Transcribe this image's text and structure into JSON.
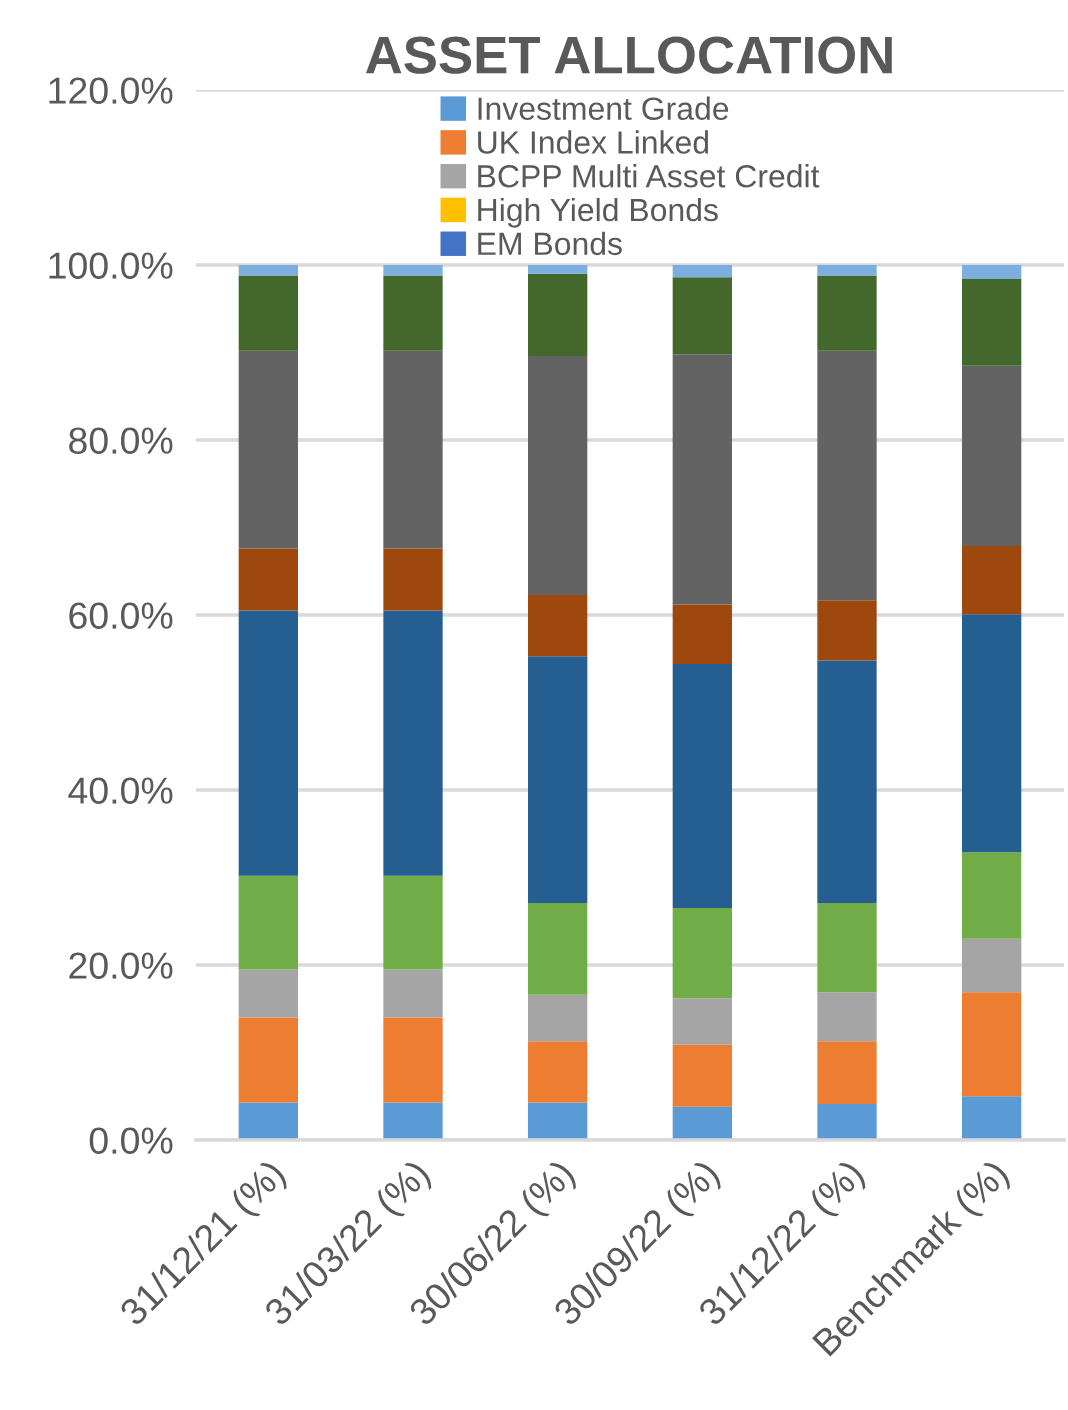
{
  "chart_data": {
    "type": "bar",
    "title": "ASSET ALLOCATION",
    "stacked": true,
    "categories": [
      "31/12/21 (%)",
      "31/03/22 (%)",
      "30/06/22 (%)",
      "30/09/22 (%)",
      "31/12/22 (%)",
      "Benchmark (%)"
    ],
    "series": [
      {
        "name": "Investment Grade",
        "color": "#5b9bd5",
        "values": [
          4.3,
          4.3,
          4.3,
          3.8,
          4.1,
          5.0
        ]
      },
      {
        "name": "UK Index Linked",
        "color": "#ed7d31",
        "values": [
          9.7,
          9.7,
          7.0,
          7.1,
          7.2,
          11.9
        ]
      },
      {
        "name": "BCPP Multi Asset Credit",
        "color": "#a5a5a5",
        "values": [
          5.5,
          5.5,
          5.3,
          5.3,
          5.6,
          6.1
        ]
      },
      {
        "name": "High Yield Bonds",
        "color": "#ffc000",
        "values": [
          0,
          0,
          0,
          0,
          0,
          0
        ]
      },
      {
        "name": "EM Bonds",
        "color": "#4472c4",
        "values": [
          0,
          0,
          0,
          0,
          0,
          0
        ]
      },
      {
        "color": "#70ad47",
        "values": [
          10.7,
          10.7,
          10.5,
          10.3,
          10.2,
          9.9
        ]
      },
      {
        "color": "#255e91",
        "values": [
          30.3,
          30.3,
          28.2,
          27.9,
          27.7,
          27.2
        ]
      },
      {
        "color": "#9e480e",
        "values": [
          7.1,
          7.1,
          7.0,
          6.8,
          6.9,
          7.8
        ]
      },
      {
        "color": "#636363",
        "values": [
          22.6,
          22.6,
          27.3,
          28.6,
          28.5,
          20.6
        ]
      },
      {
        "color": "#43682b",
        "values": [
          8.6,
          8.6,
          9.4,
          8.8,
          8.6,
          9.9
        ]
      },
      {
        "color": "#7cafdd",
        "values": [
          1.2,
          1.2,
          1.0,
          1.4,
          1.2,
          1.6
        ]
      }
    ],
    "ylim": [
      0,
      120
    ],
    "yticks": [
      {
        "value": 0,
        "label": "0.0%"
      },
      {
        "value": 20,
        "label": "20.0%"
      },
      {
        "value": 40,
        "label": "40.0%"
      },
      {
        "value": 60,
        "label": "60.0%"
      },
      {
        "value": 80,
        "label": "80.0%"
      },
      {
        "value": 100,
        "label": "100.0%"
      },
      {
        "value": 120,
        "label": "120.0%"
      }
    ],
    "grid": "y",
    "legend": "top"
  }
}
